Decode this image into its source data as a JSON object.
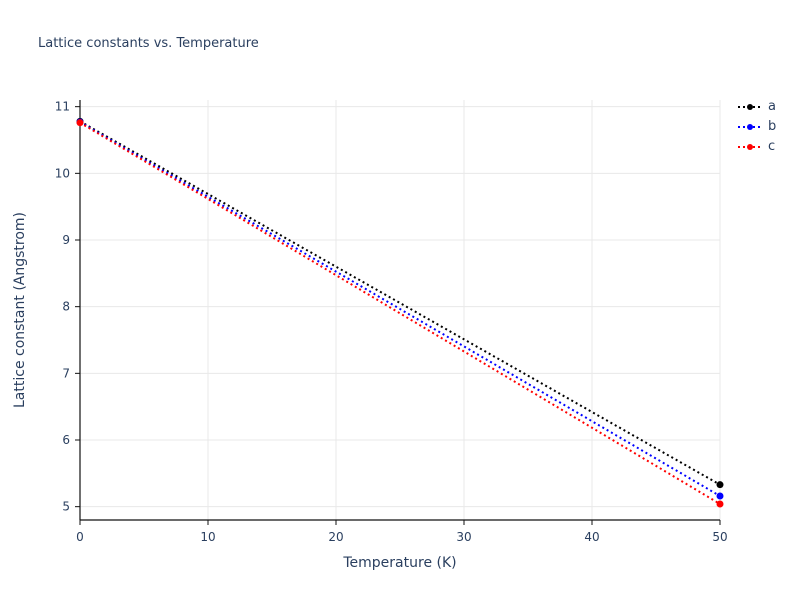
{
  "title": "Lattice constants vs. Temperature",
  "colors": {
    "text": "#2a3f5f",
    "grid": "#e8e8e8",
    "axis": "#2a3f5f",
    "tick": "#444444"
  },
  "chart_data": {
    "type": "line",
    "title": "Lattice constants vs. Temperature",
    "xlabel": "Temperature (K)",
    "ylabel": "Lattice constant (Angstrom)",
    "xlim": [
      0,
      50
    ],
    "ylim": [
      4.8,
      11.1
    ],
    "xticks": [
      0,
      10,
      20,
      30,
      40,
      50
    ],
    "yticks": [
      5,
      6,
      7,
      8,
      9,
      10,
      11
    ],
    "grid": true,
    "legend_position": "top-right",
    "line_style": "dotted",
    "series": [
      {
        "name": "a",
        "color": "#000000",
        "x": [
          0,
          50
        ],
        "y": [
          10.78,
          5.33
        ]
      },
      {
        "name": "b",
        "color": "#0000ff",
        "x": [
          0,
          50
        ],
        "y": [
          10.77,
          5.16
        ]
      },
      {
        "name": "c",
        "color": "#ff0000",
        "x": [
          0,
          50
        ],
        "y": [
          10.76,
          5.04
        ]
      }
    ]
  }
}
